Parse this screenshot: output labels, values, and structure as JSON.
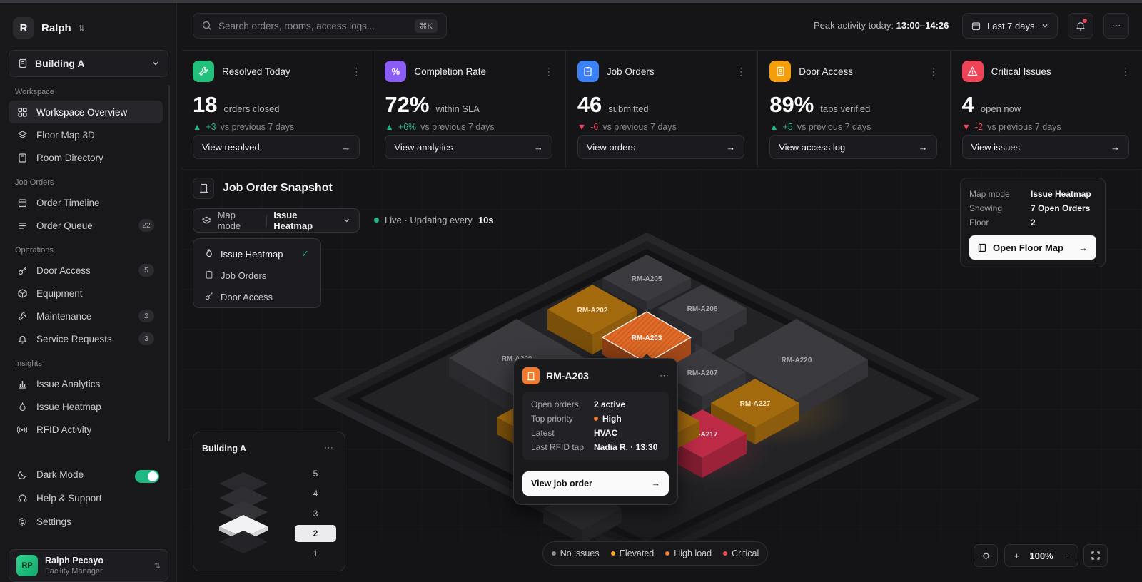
{
  "workspace": {
    "initial": "R",
    "name": "Ralph",
    "building": "Building A"
  },
  "nav": {
    "sections": [
      "Workspace",
      "Job Orders",
      "Operations",
      "Insights"
    ],
    "items": [
      {
        "label": "Workspace Overview",
        "icon": "grid-icon"
      },
      {
        "label": "Floor Map 3D",
        "icon": "layers-icon"
      },
      {
        "label": "Room Directory",
        "icon": "door-icon"
      },
      {
        "label": "Order Timeline",
        "icon": "calendar-icon"
      },
      {
        "label": "Order Queue",
        "icon": "list-icon",
        "count": "22"
      },
      {
        "label": "Door Access",
        "icon": "key-icon",
        "count": "5"
      },
      {
        "label": "Equipment",
        "icon": "box-icon"
      },
      {
        "label": "Maintenance",
        "icon": "wrench-icon",
        "count": "2"
      },
      {
        "label": "Service Requests",
        "icon": "bell-icon",
        "count": "3"
      },
      {
        "label": "Issue Analytics",
        "icon": "bar-chart-icon"
      },
      {
        "label": "Issue Heatmap",
        "icon": "flame-icon"
      },
      {
        "label": "RFID Activity",
        "icon": "signal-icon"
      }
    ],
    "footer": {
      "dark_mode": "Dark Mode",
      "help": "Help & Support",
      "settings": "Settings"
    }
  },
  "user": {
    "initials": "RP",
    "name": "Ralph Pecayo",
    "role": "Facility Manager"
  },
  "topbar": {
    "search_placeholder": "Search orders, rooms, access logs...",
    "shortcut": "⌘K",
    "peak_label": "Peak activity today:",
    "peak_value": "13:00–14:26",
    "date_range": "Last 7 days"
  },
  "kpis": [
    {
      "title": "Resolved Today",
      "value": "18",
      "unit": "orders closed",
      "delta": "+3",
      "dir": "up",
      "compare": "vs previous 7 days",
      "action": "View resolved",
      "color": "#22c07a",
      "icon": "wrench-icon"
    },
    {
      "title": "Completion Rate",
      "value": "72%",
      "unit": "within SLA",
      "delta": "+6%",
      "dir": "up",
      "compare": "vs previous 7 days",
      "action": "View analytics",
      "color": "#8b5cf6",
      "icon": "percent-icon"
    },
    {
      "title": "Job Orders",
      "value": "46",
      "unit": "submitted",
      "delta": "-6",
      "dir": "down",
      "compare": "vs previous 7 days",
      "action": "View orders",
      "color": "#3b82f6",
      "icon": "clipboard-icon"
    },
    {
      "title": "Door Access",
      "value": "89%",
      "unit": "taps verified",
      "delta": "+5",
      "dir": "up",
      "compare": "vs previous 7 days",
      "action": "View access log",
      "color": "#f59e0b",
      "icon": "badge-icon"
    },
    {
      "title": "Critical Issues",
      "value": "4",
      "unit": "open now",
      "delta": "-2",
      "dir": "down",
      "compare": "vs previous 7 days",
      "action": "View issues",
      "color": "#ef4458",
      "icon": "alert-icon"
    }
  ],
  "snapshot": {
    "title": "Job Order Snapshot",
    "map_mode_label": "Map mode",
    "map_mode_value": "Issue Heatmap",
    "live_text": "Live · Updating every",
    "live_interval": "10s",
    "modes": [
      "Issue Heatmap",
      "Job Orders",
      "Door Access"
    ]
  },
  "info": {
    "rows": [
      {
        "k": "Map mode",
        "v": "Issue Heatmap"
      },
      {
        "k": "Showing",
        "v": "7 Open Orders"
      },
      {
        "k": "Floor",
        "v": "2"
      }
    ],
    "button": "Open Floor Map"
  },
  "building_card": {
    "title": "Building A",
    "floors": [
      "5",
      "4",
      "3",
      "2",
      "1"
    ],
    "selected": "2"
  },
  "rooms": [
    "RM-A205",
    "RM-A202",
    "RM-A206",
    "RM-A203",
    "RM-A200",
    "RM-A220",
    "RM-A207",
    "RM-A227",
    "RM-A217"
  ],
  "popup": {
    "room": "RM-A203",
    "rows": [
      {
        "k": "Open orders",
        "v": "2 active"
      },
      {
        "k": "Top priority",
        "v": "High"
      },
      {
        "k": "Latest",
        "v": "HVAC"
      },
      {
        "k": "Last RFID tap",
        "v": "Nadia R. · 13:30"
      }
    ],
    "button": "View job order"
  },
  "legend": [
    {
      "label": "No issues",
      "color": "#8a8a90"
    },
    {
      "label": "Elevated",
      "color": "#f5a623"
    },
    {
      "label": "High load",
      "color": "#f27a2e"
    },
    {
      "label": "Critical",
      "color": "#ef4458"
    }
  ],
  "zoom": "100%"
}
